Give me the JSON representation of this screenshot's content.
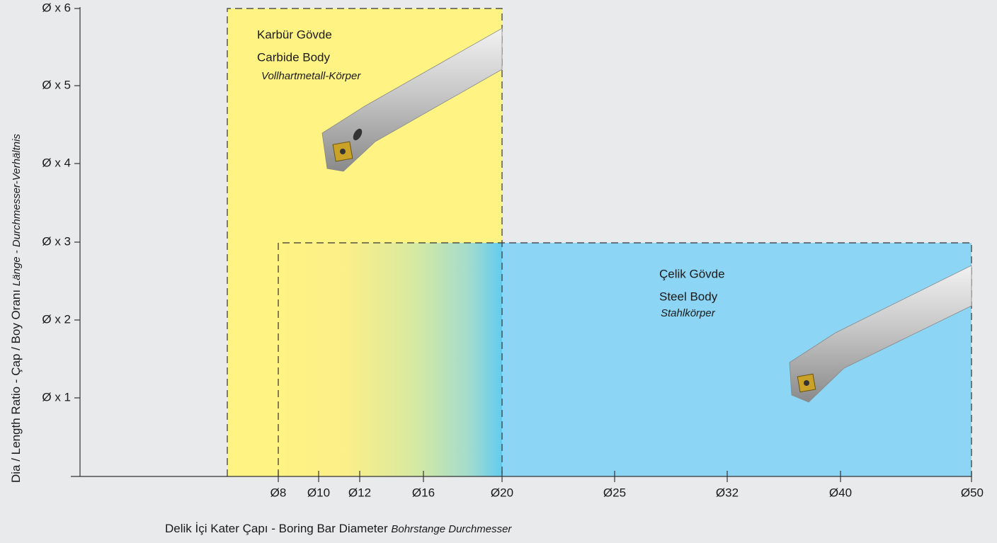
{
  "y_axis": {
    "label": "Dia / Length Ratio - Çap / Boy Oranı",
    "label_alt": "Länge - Durchmesser-Verhältnis",
    "ticks": [
      "Ø x 6",
      "Ø x 5",
      "Ø x 4",
      "Ø x 3",
      "Ø x 2",
      "Ø x 1"
    ]
  },
  "x_axis": {
    "label": "Delik İçi Kater Çapı - Boring Bar Diameter",
    "label_alt": "Bohrstange Durchmesser",
    "ticks": [
      "Ø8",
      "Ø10",
      "Ø12",
      "Ø16",
      "Ø20",
      "Ø25",
      "Ø32",
      "Ø40",
      "Ø50"
    ]
  },
  "regions": [
    {
      "title": "Karbür Gövde",
      "subtitle": "Carbide Body",
      "note": "Vollhartmetall-Körper"
    },
    {
      "title": "Çelik Gövde",
      "subtitle": "Steel Body",
      "note": "Stahlkörper"
    }
  ]
}
